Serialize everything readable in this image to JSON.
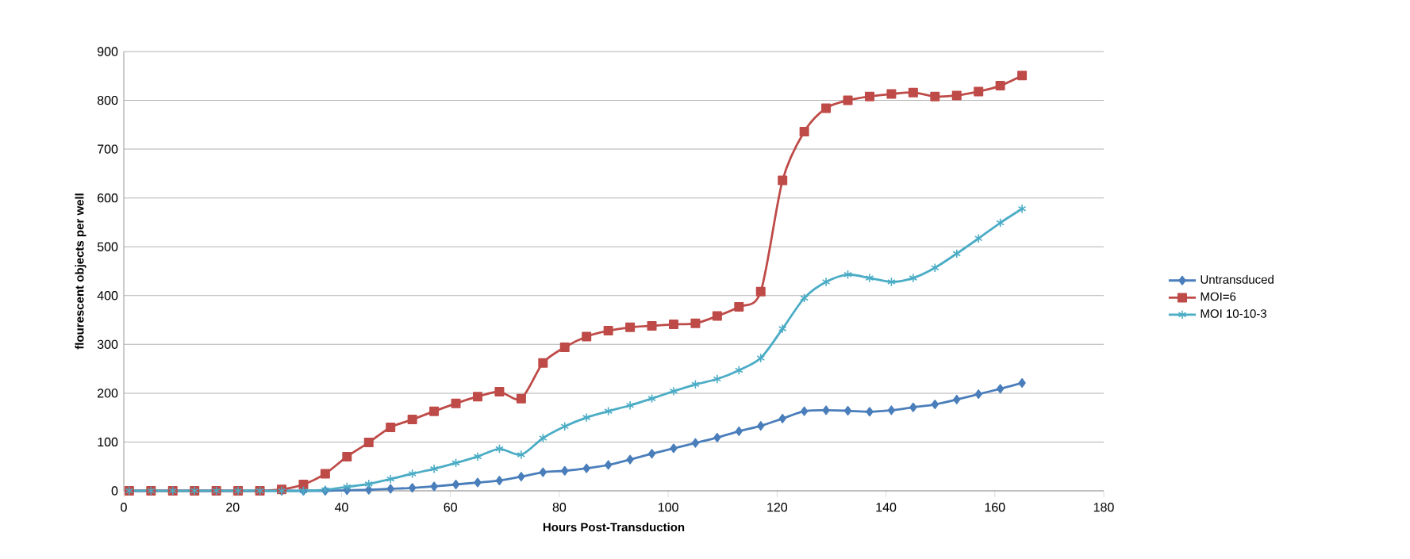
{
  "chart_data": {
    "type": "line",
    "xlabel": "Hours Post-Transduction",
    "ylabel": "flourescent objects per well",
    "x": [
      1,
      5,
      9,
      13,
      17,
      21,
      25,
      29,
      33,
      37,
      41,
      45,
      49,
      53,
      57,
      61,
      65,
      69,
      73,
      77,
      81,
      85,
      89,
      93,
      97,
      101,
      105,
      109,
      113,
      117,
      121,
      125,
      129,
      133,
      137,
      141,
      145,
      149,
      153,
      157,
      161,
      165
    ],
    "series": [
      {
        "name": "Untransduced",
        "color": "#4a7ebb",
        "marker": "diamond",
        "values": [
          0,
          0,
          0,
          0,
          0,
          0,
          0,
          0,
          0,
          0,
          1,
          2,
          4,
          6,
          9,
          13,
          17,
          21,
          29,
          38,
          41,
          46,
          53,
          64,
          76,
          87,
          98,
          109,
          122,
          133,
          148,
          163,
          165,
          164,
          162,
          165,
          171,
          177,
          187,
          198,
          209,
          221
        ]
      },
      {
        "name": "MOI=6",
        "color": "#be4b48",
        "marker": "square",
        "values": [
          0,
          0,
          0,
          0,
          0,
          0,
          0,
          3,
          13,
          35,
          70,
          99,
          130,
          146,
          163,
          179,
          193,
          203,
          189,
          262,
          294,
          316,
          328,
          335,
          338,
          341,
          343,
          358,
          377,
          408,
          636,
          736,
          784,
          800,
          808,
          813,
          816,
          808,
          810,
          818,
          830,
          851
        ]
      },
      {
        "name": "MOI 10-10-3",
        "color": "#4bacc6",
        "marker": "cross",
        "values": [
          0,
          0,
          0,
          0,
          0,
          0,
          0,
          0,
          0,
          2,
          8,
          14,
          24,
          35,
          45,
          57,
          70,
          86,
          74,
          108,
          132,
          150,
          163,
          175,
          189,
          204,
          218,
          229,
          247,
          272,
          332,
          395,
          428,
          443,
          436,
          428,
          436,
          457,
          486,
          517,
          549,
          578
        ]
      }
    ],
    "xlim": [
      0,
      180
    ],
    "xticks": [
      0,
      20,
      40,
      60,
      80,
      100,
      120,
      140,
      160,
      180
    ],
    "ylim": [
      0,
      900
    ],
    "yticks": [
      0,
      100,
      200,
      300,
      400,
      500,
      600,
      700,
      800,
      900
    ],
    "grid": "y",
    "legend": "right",
    "line_style": "solid"
  }
}
